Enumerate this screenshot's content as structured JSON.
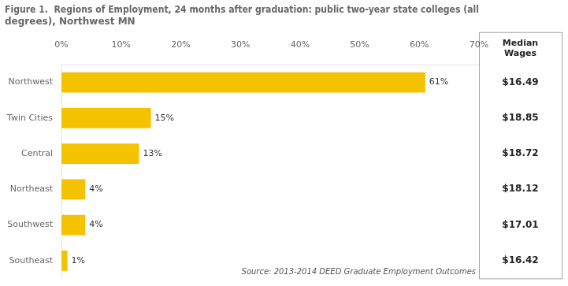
{
  "chart_data": {
    "type": "bar",
    "orientation": "horizontal",
    "title": "Figure 1.  Regions of Employment, 24 months after graduation: public two-year state colleges (all degrees), Northwest MN",
    "categories": [
      "Northwest",
      "Twin Cities",
      "Central",
      "Northeast",
      "Southwest",
      "Southeast"
    ],
    "values": [
      61,
      15,
      13,
      4,
      4,
      1
    ],
    "value_labels": [
      "61%",
      "15%",
      "13%",
      "4%",
      "4%",
      "1%"
    ],
    "data_labels": true,
    "color": "#F5C200",
    "xlim": [
      0,
      70
    ],
    "xticks": [
      {
        "value": 0,
        "label": "0%"
      },
      {
        "value": 10,
        "label": "10%"
      },
      {
        "value": 20,
        "label": "20%"
      },
      {
        "value": 30,
        "label": "30%"
      },
      {
        "value": 40,
        "label": "40%"
      },
      {
        "value": 50,
        "label": "50%"
      },
      {
        "value": 60,
        "label": "60%"
      },
      {
        "value": 70,
        "label": "70%"
      }
    ],
    "grid": false,
    "median_wages": {
      "header": "Median\nWages",
      "values": [
        16.49,
        18.85,
        18.72,
        18.12,
        17.01,
        16.42
      ],
      "value_labels": [
        "$16.49",
        "$18.85",
        "$18.72",
        "$18.12",
        "$17.01",
        "$16.42"
      ]
    },
    "annotations": [
      "Source: 2013-2014 DEED Graduate Employment Outcomes"
    ]
  }
}
